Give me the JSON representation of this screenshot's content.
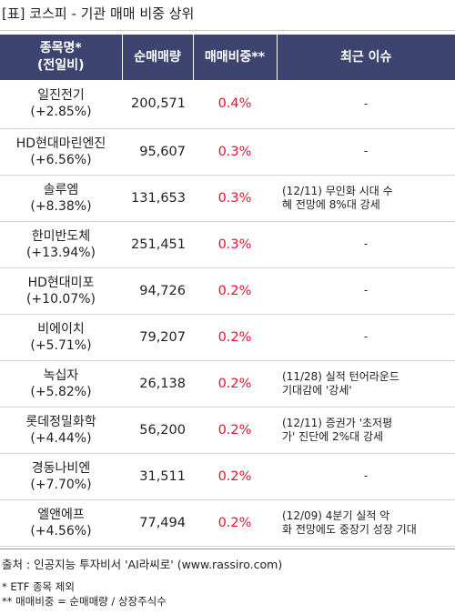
{
  "title": "[표] 코스피 - 기관 매매 비중 상위",
  "header": {
    "col1": "종목명*\n(전일비)",
    "col2": "순매매량",
    "col3": "매매비중**",
    "col4": "최근 이슈"
  },
  "rows": [
    {
      "name": "일진전기",
      "change": "(+2.85%)",
      "volume": "200,571",
      "ratio": "0.4%",
      "issue": "-"
    },
    {
      "name": "HD현대마린엔진",
      "change": "(+6.56%)",
      "volume": "95,607",
      "ratio": "0.3%",
      "issue": "-"
    },
    {
      "name": "솔루엠",
      "change": "(+8.38%)",
      "volume": "131,653",
      "ratio": "0.3%",
      "issue": "(12/11) 무인화 시대 수\n혜 전망에 8%대 강세"
    },
    {
      "name": "한미반도체",
      "change": "(+13.94%)",
      "volume": "251,451",
      "ratio": "0.3%",
      "issue": "-"
    },
    {
      "name": "HD현대미포",
      "change": "(+10.07%)",
      "volume": "94,726",
      "ratio": "0.2%",
      "issue": "-"
    },
    {
      "name": "비에이치",
      "change": "(+5.71%)",
      "volume": "79,207",
      "ratio": "0.2%",
      "issue": "-"
    },
    {
      "name": "녹십자",
      "change": "(+5.82%)",
      "volume": "26,138",
      "ratio": "0.2%",
      "issue": "(11/28) 실적 턴어라운드\n 기대감에 '강세'"
    },
    {
      "name": "롯데정밀화학",
      "change": "(+4.44%)",
      "volume": "56,200",
      "ratio": "0.2%",
      "issue": "(12/11) 증권가 '초저평\n가' 진단에 2%대 강세"
    },
    {
      "name": "경동나비엔",
      "change": "(+7.70%)",
      "volume": "31,511",
      "ratio": "0.2%",
      "issue": "-"
    },
    {
      "name": "엘앤에프",
      "change": "(+4.56%)",
      "volume": "77,494",
      "ratio": "0.2%",
      "issue": "(12/09) 4분기 실적 악\n화 전망에도 중장기 성장 기대"
    }
  ],
  "footer": {
    "source": "출처 : 인공지능 투자비서 'AI라씨로' (www.rassiro.com)",
    "note1": "* ETF 종목 제외",
    "note2": "** 매매비중 = 순매매량 / 상장주식수"
  },
  "colors": {
    "header_bg": "#3e4470",
    "ratio_text": "#e8112d"
  }
}
